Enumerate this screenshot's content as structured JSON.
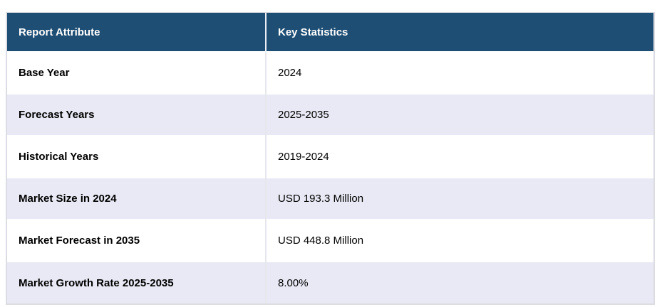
{
  "chart_data": {
    "type": "table",
    "columns": [
      "Report Attribute",
      "Key Statistics"
    ],
    "rows": [
      [
        "Base Year",
        "2024"
      ],
      [
        "Forecast Years",
        "2025-2035"
      ],
      [
        "Historical Years",
        "2019-2024"
      ],
      [
        "Market Size in 2024",
        "USD 193.3 Million"
      ],
      [
        "Market Forecast in 2035",
        "USD 448.8 Million"
      ],
      [
        "Market Growth Rate 2025-2035",
        "8.00%"
      ]
    ]
  },
  "colors": {
    "header_bg": "#1F4E74",
    "header_text": "#FFFFFF",
    "row_bg": "#FFFFFF",
    "row_alt_bg": "#E8E9F4",
    "body_text": "#000000",
    "outer_border": "#DCDDE3",
    "column_divider": "#E6E7ED"
  }
}
